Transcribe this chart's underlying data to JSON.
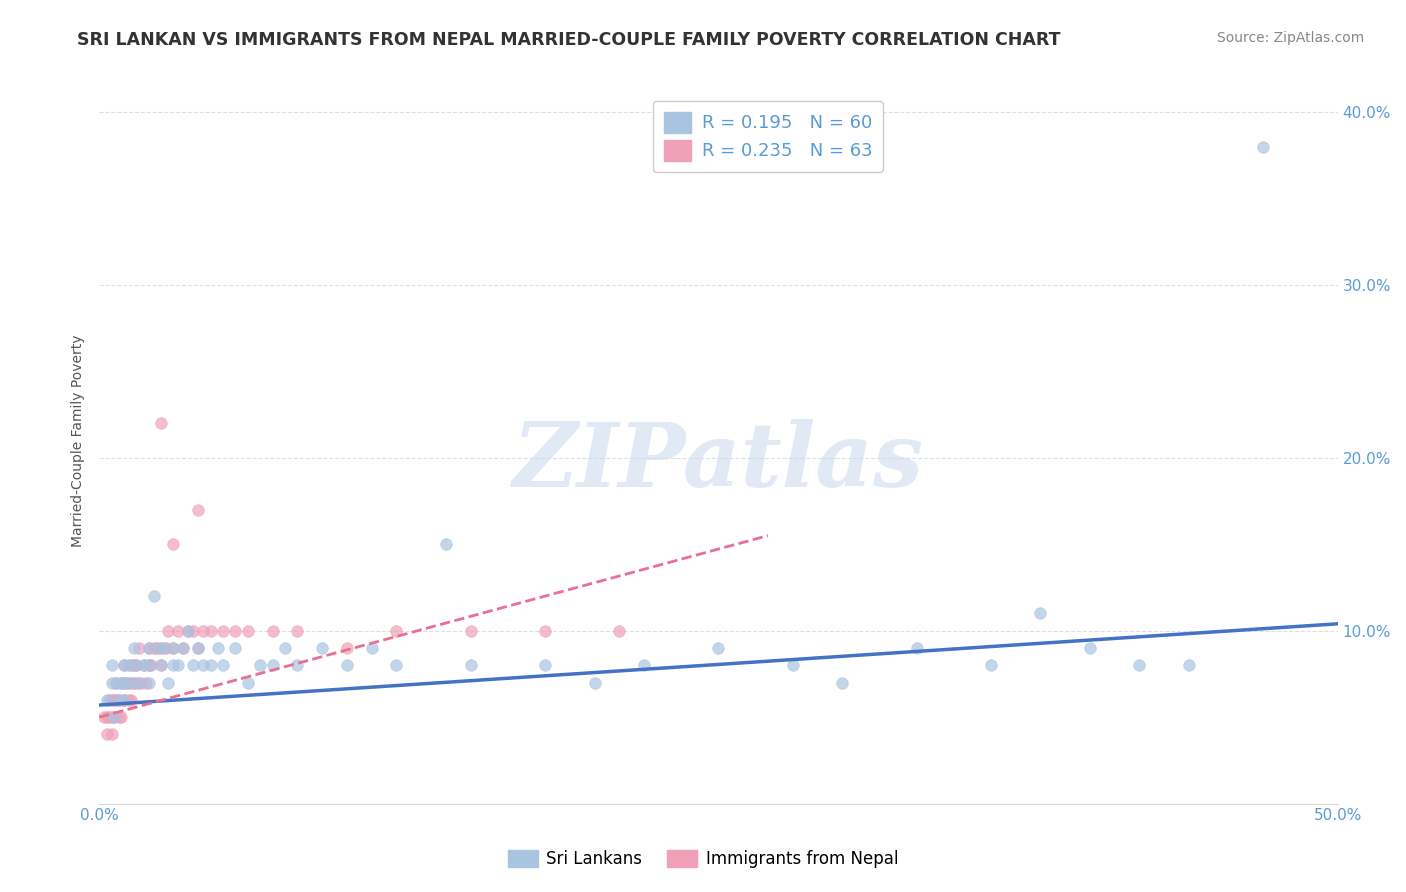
{
  "title": "SRI LANKAN VS IMMIGRANTS FROM NEPAL MARRIED-COUPLE FAMILY POVERTY CORRELATION CHART",
  "source": "Source: ZipAtlas.com",
  "ylabel": "Married-Couple Family Poverty",
  "xlim": [
    0.0,
    0.5
  ],
  "ylim": [
    0.0,
    0.42
  ],
  "xticks": [
    0.0,
    0.05,
    0.1,
    0.15,
    0.2,
    0.25,
    0.3,
    0.35,
    0.4,
    0.45,
    0.5
  ],
  "xticklabels": [
    "0.0%",
    "",
    "",
    "",
    "",
    "",
    "",
    "",
    "",
    "",
    "50.0%"
  ],
  "yticks": [
    0.0,
    0.1,
    0.2,
    0.3,
    0.4
  ],
  "yticklabels": [
    "",
    "10.0%",
    "20.0%",
    "30.0%",
    "40.0%"
  ],
  "sri_lanka_color": "#a8c4e0",
  "nepal_color": "#f0a0b8",
  "sri_lanka_line_color": "#4472c4",
  "nepal_line_color": "#e87090",
  "sri_lanka_R": 0.195,
  "sri_lanka_N": 60,
  "nepal_R": 0.235,
  "nepal_N": 63,
  "background_color": "#ffffff",
  "grid_color": "#d8d8d8",
  "watermark": "ZIPatlas",
  "sri_lanka_x": [
    0.003,
    0.005,
    0.005,
    0.006,
    0.007,
    0.008,
    0.009,
    0.01,
    0.01,
    0.01,
    0.012,
    0.013,
    0.014,
    0.015,
    0.016,
    0.018,
    0.02,
    0.02,
    0.02,
    0.022,
    0.024,
    0.025,
    0.026,
    0.028,
    0.03,
    0.03,
    0.032,
    0.034,
    0.036,
    0.038,
    0.04,
    0.042,
    0.045,
    0.048,
    0.05,
    0.055,
    0.06,
    0.065,
    0.07,
    0.075,
    0.08,
    0.09,
    0.1,
    0.11,
    0.12,
    0.14,
    0.15,
    0.18,
    0.2,
    0.22,
    0.25,
    0.28,
    0.3,
    0.33,
    0.36,
    0.38,
    0.4,
    0.42,
    0.44,
    0.47
  ],
  "sri_lanka_y": [
    0.06,
    0.07,
    0.08,
    0.05,
    0.07,
    0.06,
    0.07,
    0.08,
    0.07,
    0.06,
    0.08,
    0.07,
    0.09,
    0.08,
    0.07,
    0.08,
    0.09,
    0.07,
    0.08,
    0.12,
    0.09,
    0.08,
    0.09,
    0.07,
    0.09,
    0.08,
    0.08,
    0.09,
    0.1,
    0.08,
    0.09,
    0.08,
    0.08,
    0.09,
    0.08,
    0.09,
    0.07,
    0.08,
    0.08,
    0.09,
    0.08,
    0.09,
    0.08,
    0.09,
    0.08,
    0.15,
    0.08,
    0.08,
    0.07,
    0.08,
    0.09,
    0.08,
    0.07,
    0.09,
    0.08,
    0.11,
    0.09,
    0.08,
    0.08,
    0.38
  ],
  "nepal_x": [
    0.002,
    0.003,
    0.003,
    0.004,
    0.004,
    0.005,
    0.005,
    0.005,
    0.006,
    0.006,
    0.007,
    0.007,
    0.008,
    0.008,
    0.009,
    0.009,
    0.01,
    0.01,
    0.01,
    0.01,
    0.011,
    0.012,
    0.012,
    0.013,
    0.013,
    0.014,
    0.014,
    0.015,
    0.015,
    0.016,
    0.017,
    0.018,
    0.019,
    0.02,
    0.02,
    0.021,
    0.022,
    0.023,
    0.025,
    0.025,
    0.027,
    0.028,
    0.03,
    0.032,
    0.034,
    0.036,
    0.038,
    0.04,
    0.042,
    0.045,
    0.05,
    0.055,
    0.06,
    0.07,
    0.08,
    0.1,
    0.12,
    0.15,
    0.18,
    0.21,
    0.025,
    0.03,
    0.04
  ],
  "nepal_y": [
    0.05,
    0.04,
    0.05,
    0.05,
    0.06,
    0.04,
    0.05,
    0.06,
    0.05,
    0.06,
    0.06,
    0.07,
    0.05,
    0.06,
    0.07,
    0.05,
    0.06,
    0.07,
    0.08,
    0.06,
    0.07,
    0.06,
    0.07,
    0.08,
    0.06,
    0.07,
    0.08,
    0.07,
    0.08,
    0.09,
    0.07,
    0.08,
    0.07,
    0.08,
    0.09,
    0.08,
    0.09,
    0.09,
    0.08,
    0.09,
    0.09,
    0.1,
    0.09,
    0.1,
    0.09,
    0.1,
    0.1,
    0.09,
    0.1,
    0.1,
    0.1,
    0.1,
    0.1,
    0.1,
    0.1,
    0.09,
    0.1,
    0.1,
    0.1,
    0.1,
    0.22,
    0.15,
    0.17
  ],
  "sri_lanka_line_x": [
    0.0,
    0.5
  ],
  "sri_lanka_line_y": [
    0.057,
    0.104
  ],
  "nepal_line_x": [
    0.0,
    0.27
  ],
  "nepal_line_y": [
    0.05,
    0.155
  ]
}
